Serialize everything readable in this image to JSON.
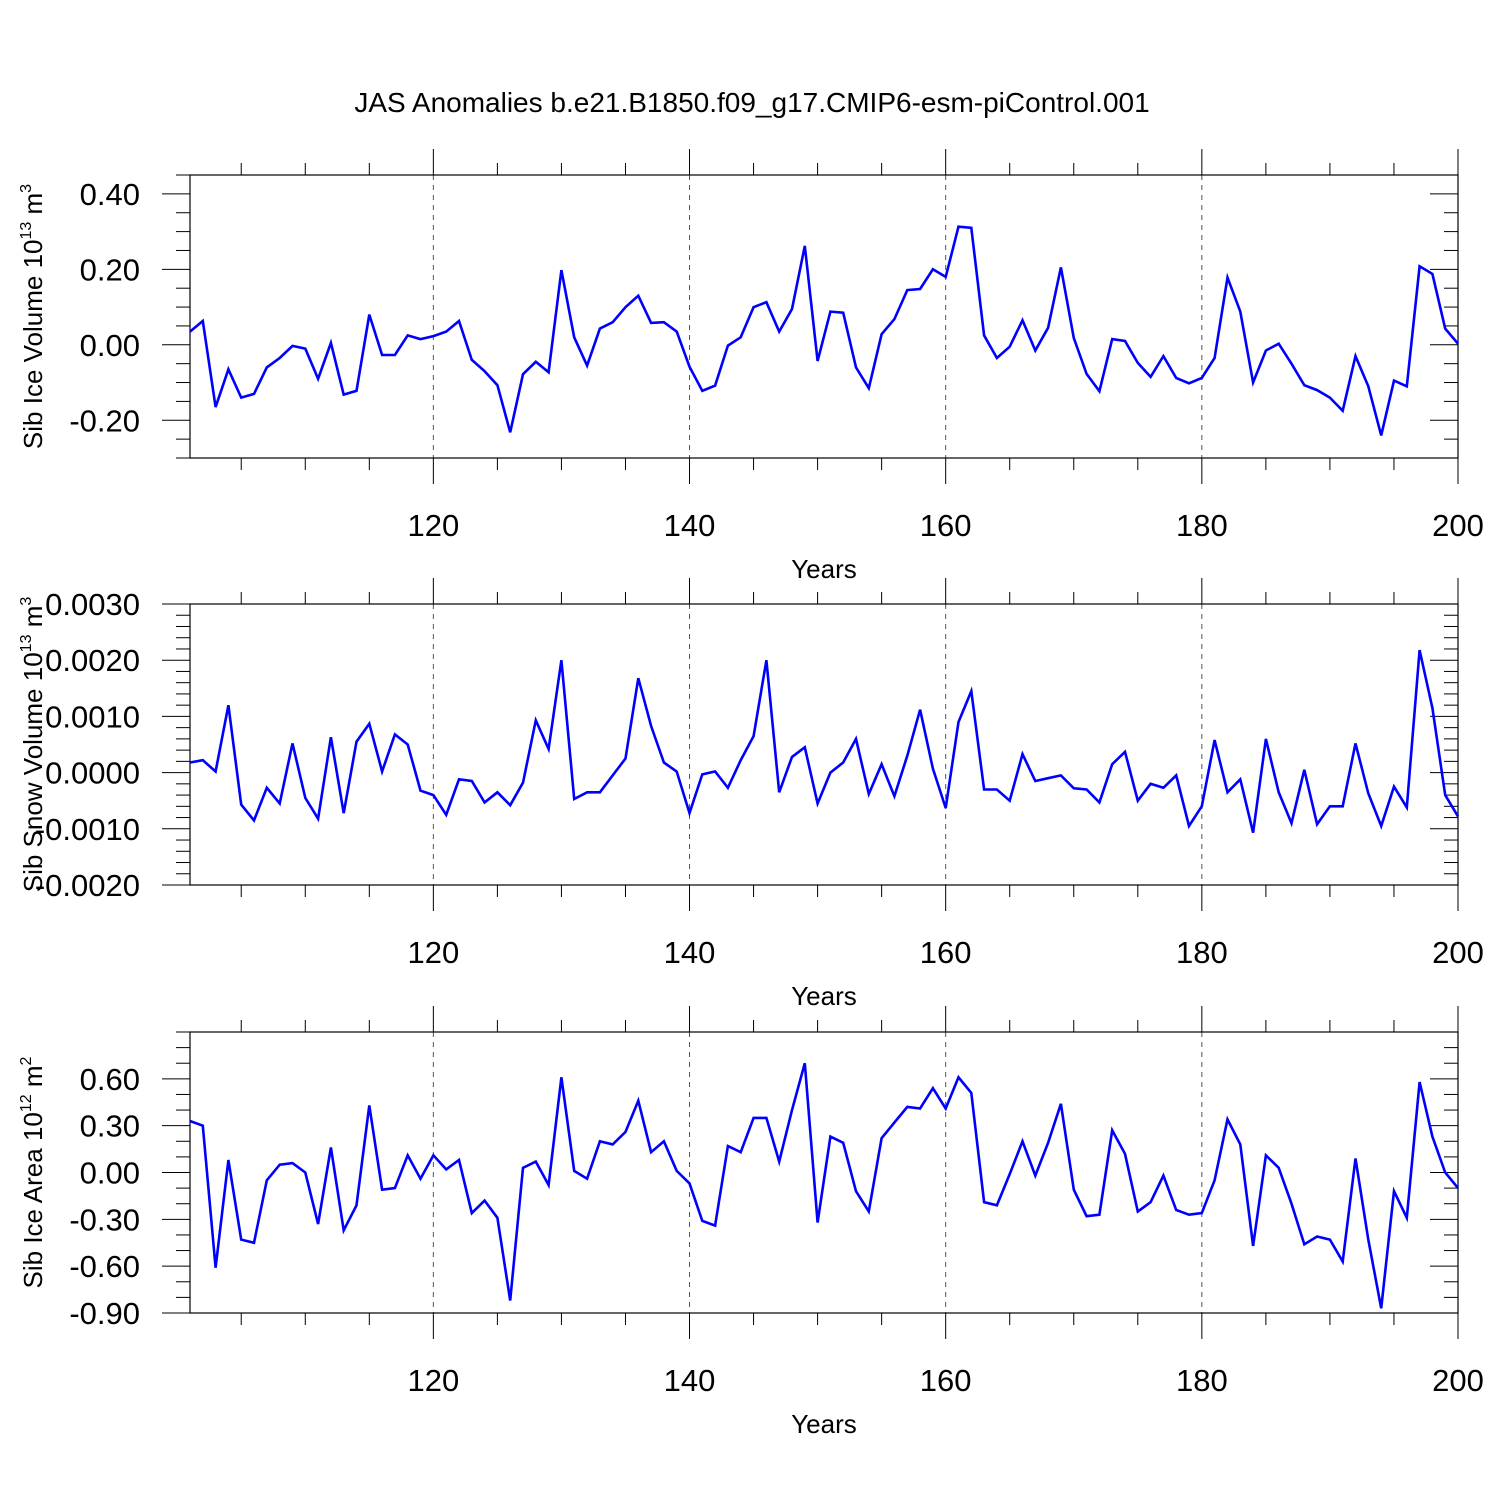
{
  "chart_data": [
    {
      "type": "line",
      "title": "JAS Anomalies b.e21.B1850.f09_g17.CMIP6-esm-piControl.001",
      "ylabel": "Sib Ice Volume 10^13 m^3",
      "ylabel_parts": {
        "text": "Sib Ice Volume 10",
        "exp1": "13",
        "unit": " m",
        "exp2": "3"
      },
      "xlabel": "Years",
      "xlim": [
        101,
        200
      ],
      "ylim": [
        -0.3,
        0.45
      ],
      "x_ticks": [
        120,
        140,
        160,
        180,
        200
      ],
      "x_tick_labels": [
        "120",
        "140",
        "160",
        "180",
        "200"
      ],
      "y_ticks": [
        -0.2,
        0.0,
        0.2,
        0.4
      ],
      "y_tick_labels": [
        "-0.20",
        "0.00",
        "0.20",
        "0.40"
      ],
      "y_minor_step": 0.05,
      "grid": "vertical dashed at major x ticks",
      "series": [
        {
          "name": "Sib Ice Volume",
          "color": "#0000ff",
          "x_start": 101,
          "values": [
            0.035,
            0.063,
            -0.165,
            -0.065,
            -0.14,
            -0.13,
            -0.06,
            -0.035,
            -0.003,
            -0.01,
            -0.09,
            0.005,
            -0.132,
            -0.122,
            0.08,
            -0.027,
            -0.027,
            0.025,
            0.015,
            0.023,
            0.035,
            0.063,
            -0.04,
            -0.07,
            -0.107,
            -0.232,
            -0.078,
            -0.045,
            -0.073,
            0.198,
            0.02,
            -0.055,
            0.043,
            0.06,
            0.1,
            0.13,
            0.058,
            0.06,
            0.035,
            -0.058,
            -0.122,
            -0.108,
            -0.002,
            0.02,
            0.1,
            0.113,
            0.035,
            0.095,
            0.262,
            -0.043,
            0.088,
            0.085,
            -0.06,
            -0.115,
            0.028,
            0.068,
            0.145,
            0.148,
            0.2,
            0.18,
            0.313,
            0.31,
            0.025,
            -0.035,
            -0.005,
            0.065,
            -0.015,
            0.045,
            0.205,
            0.018,
            -0.077,
            -0.123,
            0.015,
            0.01,
            -0.048,
            -0.085,
            -0.03,
            -0.088,
            -0.102,
            -0.088,
            -0.035,
            0.178,
            0.088,
            -0.1,
            -0.015,
            0.003,
            -0.05,
            -0.107,
            -0.12,
            -0.14,
            -0.175,
            -0.03,
            -0.11,
            -0.24,
            -0.095,
            -0.11,
            0.208,
            0.188,
            0.043,
            0.003
          ]
        }
      ]
    },
    {
      "type": "line",
      "title": "",
      "ylabel": "Sib Snow Volume 10^13 m^3",
      "ylabel_parts": {
        "text": "Sib Snow Volume 10",
        "exp1": "13",
        "unit": " m",
        "exp2": "3"
      },
      "xlabel": "Years",
      "xlim": [
        101,
        200
      ],
      "ylim": [
        -0.002,
        0.003
      ],
      "x_ticks": [
        120,
        140,
        160,
        180,
        200
      ],
      "x_tick_labels": [
        "120",
        "140",
        "160",
        "180",
        "200"
      ],
      "y_ticks": [
        -0.002,
        -0.001,
        0.0,
        0.001,
        0.002,
        0.003
      ],
      "y_tick_labels": [
        "-0.0020",
        "-0.0010",
        "0.0000",
        "0.0010",
        "0.0020",
        "0.0030"
      ],
      "y_minor_step": 0.0002,
      "grid": "vertical dashed at major x ticks",
      "series": [
        {
          "name": "Sib Snow Volume",
          "color": "#0000ff",
          "x_start": 101,
          "values": [
            0.00018,
            0.00022,
            2e-05,
            0.0012,
            -0.00057,
            -0.00085,
            -0.00027,
            -0.00055,
            0.00052,
            -0.00045,
            -0.00082,
            0.00063,
            -0.00072,
            0.00055,
            0.00087,
            2e-05,
            0.00068,
            0.0005,
            -0.00032,
            -0.0004,
            -0.00075,
            -0.00012,
            -0.00015,
            -0.00053,
            -0.00035,
            -0.00058,
            -0.00018,
            0.00093,
            0.00042,
            0.002,
            -0.00047,
            -0.00035,
            -0.00035,
            -5e-05,
            0.00025,
            0.00168,
            0.00083,
            0.00018,
            2e-05,
            -0.00072,
            -3e-05,
            2e-05,
            -0.00027,
            0.00022,
            0.00065,
            0.002,
            -0.00035,
            0.00028,
            0.00045,
            -0.00055,
            0.0,
            0.00018,
            0.0006,
            -0.00038,
            0.00015,
            -0.00042,
            0.0003,
            0.00112,
            7e-05,
            -0.00063,
            0.0009,
            0.00145,
            -0.0003,
            -0.0003,
            -0.0005,
            0.00033,
            -0.00015,
            -0.0001,
            -5e-05,
            -0.00028,
            -0.0003,
            -0.00053,
            0.00015,
            0.00037,
            -0.0005,
            -0.0002,
            -0.00027,
            -5e-05,
            -0.00095,
            -0.0006,
            0.00058,
            -0.00035,
            -0.00012,
            -0.00107,
            0.0006,
            -0.00035,
            -0.0009,
            5e-05,
            -0.00092,
            -0.0006,
            -0.0006,
            0.00052,
            -0.00037,
            -0.00095,
            -0.00025,
            -0.00062,
            0.00218,
            0.00115,
            -0.0004,
            -0.00078
          ]
        }
      ]
    },
    {
      "type": "line",
      "title": "",
      "ylabel": "Sib Ice Area 10^12 m^2",
      "ylabel_parts": {
        "text": "Sib Ice Area 10",
        "exp1": "12",
        "unit": " m",
        "exp2": "2"
      },
      "xlabel": "Years",
      "xlim": [
        101,
        200
      ],
      "ylim": [
        -0.9,
        0.9
      ],
      "x_ticks": [
        120,
        140,
        160,
        180,
        200
      ],
      "x_tick_labels": [
        "120",
        "140",
        "160",
        "180",
        "200"
      ],
      "y_ticks": [
        -0.9,
        -0.6,
        -0.3,
        0.0,
        0.3,
        0.6
      ],
      "y_tick_labels": [
        "-0.90",
        "-0.60",
        "-0.30",
        "0.00",
        "0.30",
        "0.60"
      ],
      "y_minor_step": 0.1,
      "grid": "vertical dashed at major x ticks",
      "series": [
        {
          "name": "Sib Ice Area",
          "color": "#0000ff",
          "x_start": 101,
          "values": [
            0.33,
            0.3,
            -0.61,
            0.08,
            -0.43,
            -0.45,
            -0.05,
            0.05,
            0.06,
            0.0,
            -0.33,
            0.16,
            -0.37,
            -0.21,
            0.43,
            -0.11,
            -0.1,
            0.11,
            -0.04,
            0.11,
            0.02,
            0.08,
            -0.26,
            -0.18,
            -0.29,
            -0.82,
            0.03,
            0.07,
            -0.08,
            0.61,
            0.01,
            -0.04,
            0.2,
            0.18,
            0.26,
            0.46,
            0.13,
            0.2,
            0.01,
            -0.07,
            -0.31,
            -0.34,
            0.17,
            0.13,
            0.35,
            0.35,
            0.07,
            0.4,
            0.7,
            -0.32,
            0.23,
            0.19,
            -0.12,
            -0.25,
            0.22,
            0.32,
            0.42,
            0.41,
            0.54,
            0.41,
            0.61,
            0.51,
            -0.19,
            -0.21,
            -0.01,
            0.2,
            -0.02,
            0.19,
            0.44,
            -0.11,
            -0.28,
            -0.27,
            0.27,
            0.12,
            -0.25,
            -0.19,
            -0.02,
            -0.24,
            -0.27,
            -0.26,
            -0.05,
            0.34,
            0.18,
            -0.47,
            0.11,
            0.03,
            -0.2,
            -0.46,
            -0.41,
            -0.43,
            -0.57,
            0.09,
            -0.43,
            -0.87,
            -0.12,
            -0.29,
            0.58,
            0.23,
            0.0,
            -0.1
          ]
        }
      ]
    }
  ]
}
